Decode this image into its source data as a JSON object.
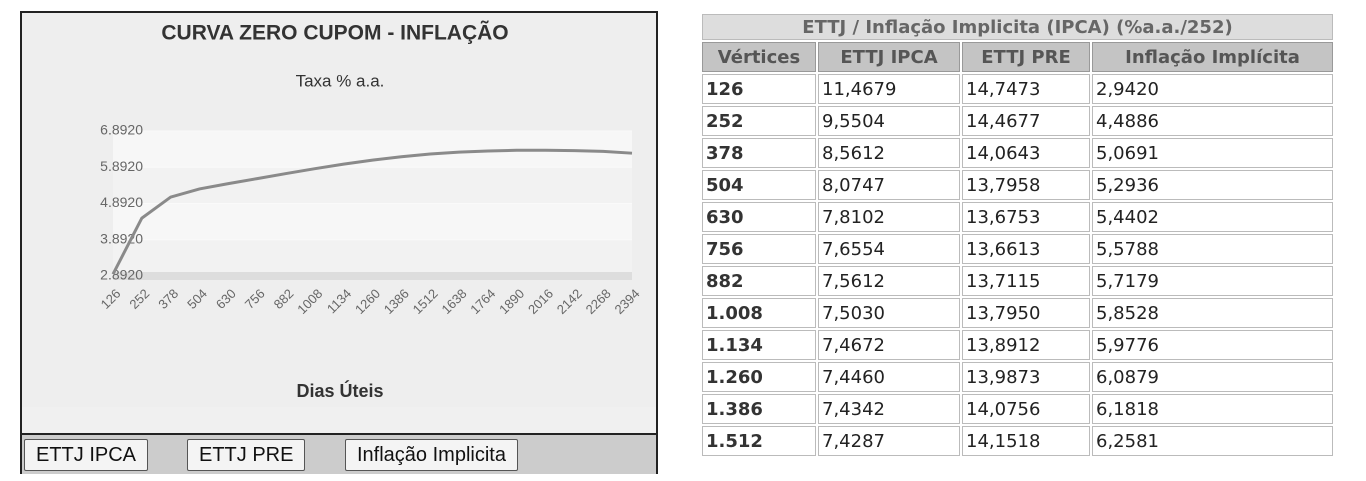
{
  "chart_data": {
    "type": "line",
    "title": "CURVA ZERO CUPOM - INFLAÇÃO",
    "subtitle": "Taxa % a.a.",
    "x_label": "Dias Úteis",
    "x": [
      126,
      252,
      378,
      504,
      630,
      756,
      882,
      1008,
      1134,
      1260,
      1386,
      1512,
      1638,
      1764,
      1890,
      2016,
      2142,
      2268,
      2394
    ],
    "xlim": [
      126,
      2394
    ],
    "xticks": [
      126,
      252,
      378,
      504,
      630,
      756,
      882,
      1008,
      1134,
      1260,
      1386,
      1512,
      1638,
      1764,
      1890,
      2016,
      2142,
      2268,
      2394
    ],
    "ylim": [
      2.892,
      6.892
    ],
    "yticks": [
      {
        "value": 2.892,
        "label": "2.8920"
      },
      {
        "value": 3.892,
        "label": "3.8920"
      },
      {
        "value": 4.892,
        "label": "4.8920"
      },
      {
        "value": 5.892,
        "label": "5.8920"
      },
      {
        "value": 6.892,
        "label": "6.8920"
      }
    ],
    "series": [
      {
        "color": "#8a8a8a",
        "values": [
          2.942,
          4.4886,
          5.0691,
          5.2936,
          5.4402,
          5.5788,
          5.7179,
          5.8528,
          5.9776,
          6.0879,
          6.1818,
          6.2581,
          6.31,
          6.34,
          6.36,
          6.36,
          6.35,
          6.33,
          6.28
        ]
      }
    ],
    "grid": true
  },
  "buttons": [
    "ETTJ IPCA",
    "ETTJ PRE",
    "Inflação Implicita"
  ],
  "table": {
    "title": "ETTJ / Inflação Implicita (IPCA) (%a.a./252)",
    "headers": [
      "Vértices",
      "ETTJ IPCA",
      "ETTJ PRE",
      "Inflação Implícita"
    ],
    "rows": [
      [
        "126",
        "11,4679",
        "14,7473",
        "2,9420"
      ],
      [
        "252",
        "9,5504",
        "14,4677",
        "4,4886"
      ],
      [
        "378",
        "8,5612",
        "14,0643",
        "5,0691"
      ],
      [
        "504",
        "8,0747",
        "13,7958",
        "5,2936"
      ],
      [
        "630",
        "7,8102",
        "13,6753",
        "5,4402"
      ],
      [
        "756",
        "7,6554",
        "13,6613",
        "5,5788"
      ],
      [
        "882",
        "7,5612",
        "13,7115",
        "5,7179"
      ],
      [
        "1.008",
        "7,5030",
        "13,7950",
        "5,8528"
      ],
      [
        "1.134",
        "7,4672",
        "13,8912",
        "5,9776"
      ],
      [
        "1.260",
        "7,4460",
        "13,9873",
        "6,0879"
      ],
      [
        "1.386",
        "7,4342",
        "14,0756",
        "6,1818"
      ],
      [
        "1.512",
        "7,4287",
        "14,1518",
        "6,2581"
      ]
    ]
  }
}
